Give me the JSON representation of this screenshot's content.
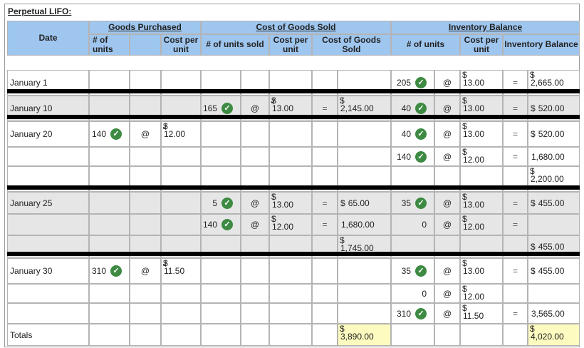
{
  "title": "Perpetual LIFO:",
  "headers": {
    "date": "Date",
    "goods_purchased": "Goods Purchased",
    "cost_of_goods_sold": "Cost of Goods Sold",
    "inventory_balance": "Inventory Balance",
    "gp_units": "# of units",
    "gp_cost": "Cost per unit",
    "cogs_units": "# of units sold",
    "cogs_cost": "Cost per unit",
    "cogs_total": "Cost of Goods Sold",
    "inv_units": "# of units",
    "inv_cost": "Cost per unit",
    "inv_balance": "Inventory Balance"
  },
  "symbols": {
    "at": "@",
    "equals": "=",
    "dollar": "$",
    "check": "✓"
  },
  "rows": [
    {
      "date": "January 1",
      "gp_units": "",
      "gp_cost": "",
      "cogs_units": "",
      "cogs_cost": "",
      "cogs_total": "",
      "inv_units": "205",
      "inv_cost": "13.00",
      "inv_balance": "2,665.00"
    },
    {
      "date": "January 10",
      "gp_units": "",
      "gp_cost": "",
      "cogs_units": "165",
      "cogs_cost": "13.00",
      "cogs_total": "2,145.00",
      "inv_units": "40",
      "inv_cost": "13.00",
      "inv_balance": "520.00"
    },
    {
      "date": "January 20",
      "gp_units": "140",
      "gp_cost": "12.00",
      "cogs_units": "",
      "cogs_cost": "",
      "cogs_total": "",
      "inv_units": "40",
      "inv_cost": "13.00",
      "inv_balance": "520.00"
    },
    {
      "date": "",
      "gp_units": "",
      "gp_cost": "",
      "cogs_units": "",
      "cogs_cost": "",
      "cogs_total": "",
      "inv_units": "140",
      "inv_cost": "12.00",
      "inv_balance": "1,680.00"
    },
    {
      "date": "",
      "gp_units": "",
      "gp_cost": "",
      "cogs_units": "",
      "cogs_cost": "",
      "cogs_total": "",
      "inv_units": "",
      "inv_cost": "",
      "inv_balance": "2,200.00"
    },
    {
      "date": "January 25",
      "gp_units": "",
      "gp_cost": "",
      "cogs_units": "5",
      "cogs_cost": "13.00",
      "cogs_total": "65.00",
      "inv_units": "35",
      "inv_cost": "13.00",
      "inv_balance": "455.00"
    },
    {
      "date": "",
      "gp_units": "",
      "gp_cost": "",
      "cogs_units": "140",
      "cogs_cost": "12.00",
      "cogs_total": "1,680.00",
      "inv_units": "0",
      "inv_cost": "12.00",
      "inv_balance": ""
    },
    {
      "date": "",
      "gp_units": "",
      "gp_cost": "",
      "cogs_units": "",
      "cogs_cost": "",
      "cogs_total": "1,745.00",
      "inv_units": "",
      "inv_cost": "",
      "inv_balance": "455.00"
    },
    {
      "date": "January 30",
      "gp_units": "310",
      "gp_cost": "11.50",
      "cogs_units": "",
      "cogs_cost": "",
      "cogs_total": "",
      "inv_units": "35",
      "inv_cost": "13.00",
      "inv_balance": "455.00"
    },
    {
      "date": "",
      "gp_units": "",
      "gp_cost": "",
      "cogs_units": "",
      "cogs_cost": "",
      "cogs_total": "",
      "inv_units": "0",
      "inv_cost": "12.00",
      "inv_balance": ""
    },
    {
      "date": "",
      "gp_units": "",
      "gp_cost": "",
      "cogs_units": "",
      "cogs_cost": "",
      "cogs_total": "",
      "inv_units": "310",
      "inv_cost": "11.50",
      "inv_balance": "3,565.00"
    },
    {
      "date": "Totals",
      "gp_units": "",
      "gp_cost": "",
      "cogs_units": "",
      "cogs_cost": "",
      "cogs_total": "3,890.00",
      "inv_units": "",
      "inv_cost": "",
      "inv_balance": "4,020.00"
    }
  ],
  "colors": {
    "header_bg": "#9fc6ef",
    "shaded_bg": "#e6e6e6",
    "total_bg": "#fdfbbf",
    "check_green": "#3d8a43",
    "separator": "#000000"
  }
}
